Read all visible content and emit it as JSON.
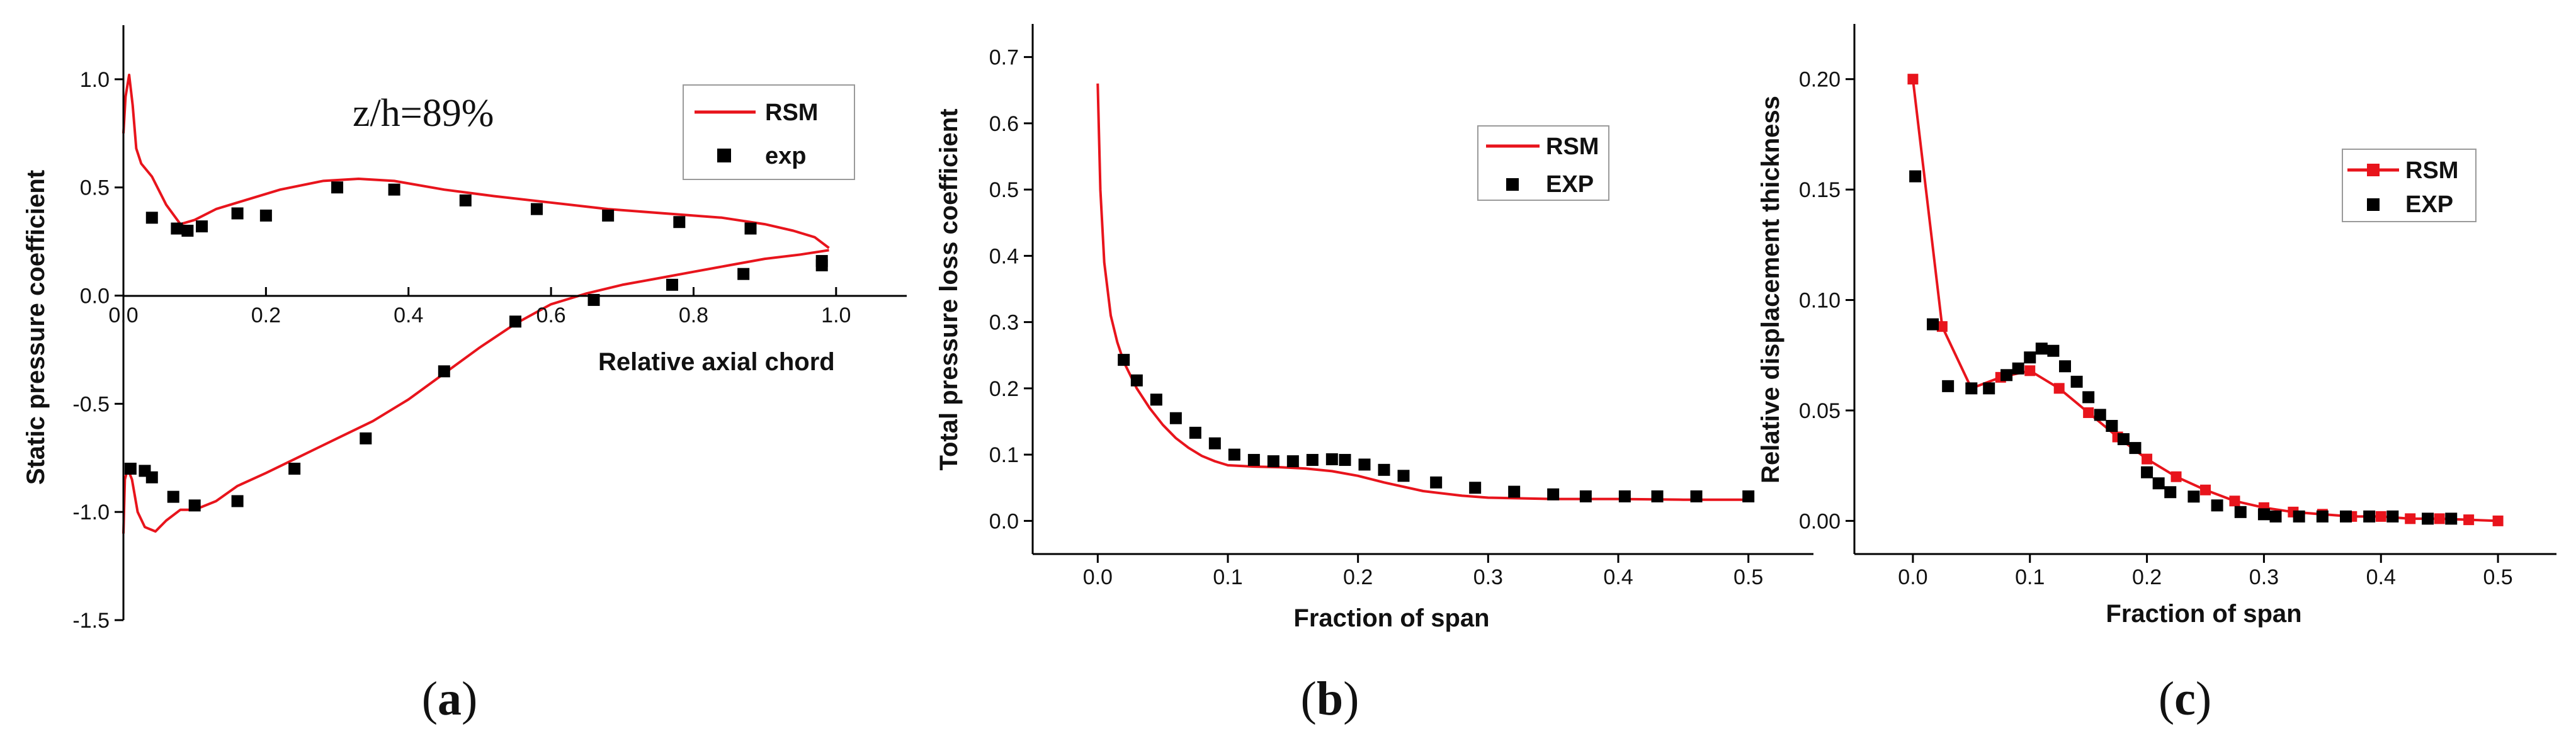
{
  "chart_data": [
    {
      "id": "a",
      "type": "line",
      "panel_label": "(a)",
      "panel_letter": "a",
      "annotation": "z/h=89%",
      "xlabel": "Relative axial chord",
      "ylabel": "Static pressure coefficient",
      "xlim": [
        0,
        1.1
      ],
      "ylim": [
        -1.5,
        1.25
      ],
      "xticks": [
        "0.0",
        "0.2",
        "0.4",
        "0.6",
        "0.8",
        "1.0"
      ],
      "xtick_values": [
        0,
        0.2,
        0.4,
        0.6,
        0.8,
        1.0
      ],
      "yticks": [
        "-1.5",
        "-1.0",
        "-0.5",
        "0.0",
        "0.5",
        "1.0"
      ],
      "ytick_values": [
        -1.5,
        -1.0,
        -0.5,
        0.0,
        0.5,
        1.0
      ],
      "legend": [
        "RSM",
        "exp"
      ],
      "series": [
        {
          "name": "RSM upper",
          "style": "line",
          "color": "#e8141c",
          "x": [
            0.0,
            0.003,
            0.008,
            0.013,
            0.018,
            0.025,
            0.04,
            0.06,
            0.08,
            0.1,
            0.13,
            0.17,
            0.22,
            0.28,
            0.33,
            0.38,
            0.45,
            0.52,
            0.6,
            0.68,
            0.76,
            0.84,
            0.9,
            0.94,
            0.97,
            0.99
          ],
          "y": [
            0.75,
            0.92,
            1.02,
            0.88,
            0.68,
            0.61,
            0.55,
            0.42,
            0.33,
            0.35,
            0.4,
            0.44,
            0.49,
            0.53,
            0.54,
            0.53,
            0.49,
            0.46,
            0.43,
            0.4,
            0.38,
            0.36,
            0.33,
            0.3,
            0.27,
            0.22
          ]
        },
        {
          "name": "RSM lower",
          "style": "line",
          "color": "#e8141c",
          "x": [
            0.0,
            0.002,
            0.006,
            0.012,
            0.02,
            0.03,
            0.045,
            0.06,
            0.08,
            0.1,
            0.13,
            0.16,
            0.2,
            0.25,
            0.3,
            0.35,
            0.4,
            0.45,
            0.5,
            0.55,
            0.6,
            0.65,
            0.7,
            0.75,
            0.8,
            0.85,
            0.9,
            0.95,
            0.99
          ],
          "y": [
            -1.1,
            -0.85,
            -0.8,
            -0.85,
            -1.0,
            -1.07,
            -1.09,
            -1.04,
            -0.99,
            -0.99,
            -0.95,
            -0.88,
            -0.82,
            -0.74,
            -0.66,
            -0.58,
            -0.48,
            -0.36,
            -0.24,
            -0.13,
            -0.04,
            0.01,
            0.05,
            0.08,
            0.11,
            0.14,
            0.17,
            0.19,
            0.21
          ]
        },
        {
          "name": "exp upper",
          "style": "square",
          "color": "#000000",
          "x": [
            0.04,
            0.075,
            0.09,
            0.11,
            0.16,
            0.2,
            0.3,
            0.38,
            0.48,
            0.58,
            0.68,
            0.78,
            0.88,
            0.98
          ],
          "y": [
            0.36,
            0.31,
            0.3,
            0.32,
            0.38,
            0.37,
            0.5,
            0.49,
            0.44,
            0.4,
            0.37,
            0.34,
            0.31,
            0.16
          ]
        },
        {
          "name": "exp lower",
          "style": "square",
          "color": "#000000",
          "x": [
            0.01,
            0.03,
            0.04,
            0.07,
            0.1,
            0.16,
            0.24,
            0.34,
            0.45,
            0.55,
            0.66,
            0.77,
            0.87,
            0.98
          ],
          "y": [
            -0.8,
            -0.81,
            -0.84,
            -0.93,
            -0.97,
            -0.95,
            -0.8,
            -0.66,
            -0.35,
            -0.12,
            -0.02,
            0.05,
            0.1,
            0.14
          ]
        }
      ]
    },
    {
      "id": "b",
      "type": "line",
      "panel_label": "(b)",
      "panel_letter": "b",
      "xlabel": "Fraction of span",
      "ylabel": "Total pressure loss coefficient",
      "xlim": [
        -0.05,
        0.55
      ],
      "ylim": [
        -0.05,
        0.75
      ],
      "xticks": [
        "0.0",
        "0.1",
        "0.2",
        "0.3",
        "0.4",
        "0.5"
      ],
      "xtick_values": [
        0,
        0.1,
        0.2,
        0.3,
        0.4,
        0.5
      ],
      "yticks": [
        "0.0",
        "0.1",
        "0.2",
        "0.3",
        "0.4",
        "0.5",
        "0.6",
        "0.7"
      ],
      "ytick_values": [
        0,
        0.1,
        0.2,
        0.3,
        0.4,
        0.5,
        0.6,
        0.7
      ],
      "legend": [
        "RSM",
        "EXP"
      ],
      "series": [
        {
          "name": "RSM",
          "style": "line",
          "color": "#e8141c",
          "x": [
            0.0,
            0.002,
            0.005,
            0.01,
            0.015,
            0.02,
            0.03,
            0.04,
            0.05,
            0.06,
            0.07,
            0.08,
            0.09,
            0.1,
            0.12,
            0.14,
            0.16,
            0.18,
            0.2,
            0.22,
            0.25,
            0.28,
            0.3,
            0.35,
            0.4,
            0.45,
            0.5
          ],
          "y": [
            0.66,
            0.5,
            0.39,
            0.31,
            0.27,
            0.24,
            0.2,
            0.17,
            0.145,
            0.125,
            0.11,
            0.098,
            0.09,
            0.084,
            0.082,
            0.081,
            0.079,
            0.075,
            0.068,
            0.058,
            0.045,
            0.038,
            0.035,
            0.033,
            0.033,
            0.032,
            0.032
          ]
        },
        {
          "name": "EXP",
          "style": "square",
          "color": "#000000",
          "x": [
            0.02,
            0.03,
            0.045,
            0.06,
            0.075,
            0.09,
            0.105,
            0.12,
            0.135,
            0.15,
            0.165,
            0.18,
            0.19,
            0.205,
            0.22,
            0.235,
            0.26,
            0.29,
            0.32,
            0.35,
            0.375,
            0.405,
            0.43,
            0.46,
            0.5
          ],
          "y": [
            0.243,
            0.212,
            0.183,
            0.155,
            0.133,
            0.117,
            0.1,
            0.092,
            0.09,
            0.09,
            0.092,
            0.093,
            0.092,
            0.085,
            0.077,
            0.068,
            0.058,
            0.05,
            0.044,
            0.04,
            0.037,
            0.037,
            0.037,
            0.037,
            0.037
          ]
        }
      ]
    },
    {
      "id": "c",
      "type": "line",
      "panel_label": "(c)",
      "panel_letter": "c",
      "xlabel": "Fraction of span",
      "ylabel": "Relative displacement thickness",
      "xlim": [
        -0.05,
        0.55
      ],
      "ylim": [
        -0.015,
        0.225
      ],
      "xticks": [
        "0.0",
        "0.1",
        "0.2",
        "0.3",
        "0.4",
        "0.5"
      ],
      "xtick_values": [
        0,
        0.1,
        0.2,
        0.3,
        0.4,
        0.5
      ],
      "yticks": [
        "0.00",
        "0.05",
        "0.10",
        "0.15",
        "0.20"
      ],
      "ytick_values": [
        0,
        0.05,
        0.1,
        0.15,
        0.2
      ],
      "legend": [
        "RSM",
        "EXP"
      ],
      "series": [
        {
          "name": "RSM",
          "style": "line-square",
          "color": "#e8141c",
          "x": [
            0.0,
            0.025,
            0.05,
            0.075,
            0.1,
            0.125,
            0.15,
            0.175,
            0.2,
            0.225,
            0.25,
            0.275,
            0.3,
            0.325,
            0.35,
            0.375,
            0.4,
            0.425,
            0.45,
            0.475,
            0.5
          ],
          "y": [
            0.2,
            0.088,
            0.06,
            0.065,
            0.068,
            0.06,
            0.049,
            0.038,
            0.028,
            0.02,
            0.014,
            0.009,
            0.006,
            0.004,
            0.003,
            0.002,
            0.002,
            0.001,
            0.001,
            0.0005,
            0.0
          ],
          "squares_x": [
            0.0,
            0.025,
            0.05,
            0.075,
            0.1,
            0.125,
            0.15,
            0.175,
            0.2,
            0.225,
            0.25,
            0.275,
            0.3,
            0.325,
            0.35,
            0.375,
            0.4,
            0.425,
            0.45,
            0.475,
            0.5
          ],
          "squares_y": [
            0.2,
            0.088,
            0.06,
            0.065,
            0.068,
            0.06,
            0.049,
            0.038,
            0.028,
            0.02,
            0.014,
            0.009,
            0.006,
            0.004,
            0.003,
            0.002,
            0.002,
            0.001,
            0.001,
            0.0005,
            0.0
          ]
        },
        {
          "name": "EXP",
          "style": "square",
          "color": "#000000",
          "x": [
            0.002,
            0.017,
            0.03,
            0.05,
            0.065,
            0.08,
            0.09,
            0.1,
            0.11,
            0.12,
            0.13,
            0.14,
            0.15,
            0.16,
            0.17,
            0.18,
            0.19,
            0.2,
            0.21,
            0.22,
            0.24,
            0.26,
            0.28,
            0.3,
            0.31,
            0.33,
            0.35,
            0.37,
            0.39,
            0.41,
            0.44,
            0.46
          ],
          "y": [
            0.156,
            0.089,
            0.061,
            0.06,
            0.06,
            0.066,
            0.069,
            0.074,
            0.078,
            0.077,
            0.07,
            0.063,
            0.056,
            0.048,
            0.043,
            0.037,
            0.033,
            0.022,
            0.017,
            0.013,
            0.011,
            0.007,
            0.004,
            0.003,
            0.002,
            0.002,
            0.002,
            0.002,
            0.002,
            0.002,
            0.001,
            0.001
          ]
        }
      ]
    }
  ]
}
